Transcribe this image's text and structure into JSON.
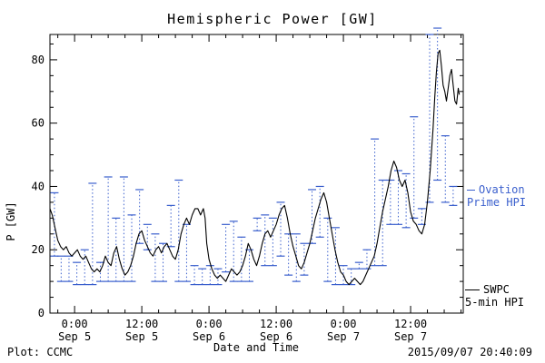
{
  "title": "Hemispheric Power [GW]",
  "footer": {
    "plot_source": "Plot: CCMC",
    "timestamp": "2015/09/07 20:40:09"
  },
  "legend": {
    "ovation_line1": "Ovation",
    "ovation_line2": "Prime HPI",
    "swpc_line1": "SWPC",
    "swpc_line2": "5-min HPI"
  },
  "colors": {
    "swpc": "#000000",
    "ovation": "#3a5fcd",
    "axis": "#000000",
    "background": "#ffffff"
  },
  "chart_data": {
    "type": "line",
    "title": "Hemispheric Power [GW]",
    "xlabel": "Date and Time",
    "ylabel": "P [GW]",
    "x_units": "hours from 2015-09-05 00:00 UT",
    "xlim": [
      -4.4,
      69.4
    ],
    "ylim": [
      0,
      88
    ],
    "yticks": [
      0,
      20,
      40,
      60,
      80
    ],
    "y_minor_step": 5,
    "x_minor_step": 3,
    "xticks": [
      {
        "t": 0,
        "label": [
          "0:00",
          "Sep 5"
        ]
      },
      {
        "t": 12,
        "label": [
          "12:00",
          "Sep 5"
        ]
      },
      {
        "t": 24,
        "label": [
          "0:00",
          "Sep 6"
        ]
      },
      {
        "t": 36,
        "label": [
          "12:00",
          "Sep 6"
        ]
      },
      {
        "t": 48,
        "label": [
          "0:00",
          "Sep 7"
        ]
      },
      {
        "t": 60,
        "label": [
          "12:00",
          "Sep 7"
        ]
      }
    ],
    "series": [
      {
        "name": "SWPC 5-min HPI",
        "type": "line",
        "color": "#000000",
        "points": [
          [
            -4.4,
            33
          ],
          [
            -4,
            31
          ],
          [
            -3.5,
            27
          ],
          [
            -3,
            23
          ],
          [
            -2.5,
            21
          ],
          [
            -2,
            20
          ],
          [
            -1.5,
            21
          ],
          [
            -1,
            19
          ],
          [
            -0.5,
            18
          ],
          [
            0,
            19
          ],
          [
            0.5,
            20
          ],
          [
            1,
            18
          ],
          [
            1.5,
            17
          ],
          [
            2,
            18
          ],
          [
            2.5,
            16
          ],
          [
            3,
            14
          ],
          [
            3.5,
            13
          ],
          [
            4,
            14
          ],
          [
            4.5,
            13
          ],
          [
            5,
            15
          ],
          [
            5.5,
            18
          ],
          [
            6,
            16
          ],
          [
            6.5,
            15
          ],
          [
            7,
            19
          ],
          [
            7.5,
            21
          ],
          [
            8,
            17
          ],
          [
            8.5,
            14
          ],
          [
            9,
            12
          ],
          [
            9.5,
            13
          ],
          [
            10,
            15
          ],
          [
            10.5,
            18
          ],
          [
            11,
            22
          ],
          [
            11.5,
            25
          ],
          [
            12,
            26
          ],
          [
            12.5,
            23
          ],
          [
            13,
            21
          ],
          [
            13.5,
            19
          ],
          [
            14,
            18
          ],
          [
            14.5,
            20
          ],
          [
            15,
            21
          ],
          [
            15.5,
            19
          ],
          [
            16,
            21
          ],
          [
            16.5,
            22
          ],
          [
            17,
            20
          ],
          [
            17.5,
            18
          ],
          [
            18,
            17
          ],
          [
            18.5,
            20
          ],
          [
            19,
            25
          ],
          [
            19.5,
            28
          ],
          [
            20,
            30
          ],
          [
            20.5,
            28
          ],
          [
            21,
            31
          ],
          [
            21.5,
            33
          ],
          [
            22,
            33
          ],
          [
            22.5,
            31
          ],
          [
            23,
            33
          ],
          [
            23.3,
            30
          ],
          [
            23.6,
            22
          ],
          [
            24,
            17
          ],
          [
            24.5,
            14
          ],
          [
            25,
            12
          ],
          [
            25.5,
            11
          ],
          [
            26,
            12
          ],
          [
            26.5,
            11
          ],
          [
            27,
            10
          ],
          [
            27.5,
            12
          ],
          [
            28,
            14
          ],
          [
            28.5,
            13
          ],
          [
            29,
            12
          ],
          [
            29.5,
            13
          ],
          [
            30,
            15
          ],
          [
            30.5,
            18
          ],
          [
            31,
            22
          ],
          [
            31.5,
            20
          ],
          [
            32,
            17
          ],
          [
            32.5,
            15
          ],
          [
            33,
            18
          ],
          [
            33.5,
            22
          ],
          [
            34,
            25
          ],
          [
            34.5,
            26
          ],
          [
            35,
            24
          ],
          [
            35.5,
            26
          ],
          [
            36,
            28
          ],
          [
            36.5,
            31
          ],
          [
            37,
            33
          ],
          [
            37.5,
            34
          ],
          [
            38,
            30
          ],
          [
            38.5,
            25
          ],
          [
            39,
            21
          ],
          [
            39.5,
            18
          ],
          [
            40,
            15
          ],
          [
            40.5,
            14
          ],
          [
            41,
            16
          ],
          [
            41.5,
            19
          ],
          [
            42,
            22
          ],
          [
            42.5,
            26
          ],
          [
            43,
            30
          ],
          [
            43.5,
            33
          ],
          [
            44,
            36
          ],
          [
            44.5,
            38
          ],
          [
            45,
            35
          ],
          [
            45.5,
            30
          ],
          [
            46,
            25
          ],
          [
            46.5,
            20
          ],
          [
            47,
            16
          ],
          [
            47.5,
            13
          ],
          [
            48,
            12
          ],
          [
            48.5,
            10
          ],
          [
            49,
            9
          ],
          [
            49.5,
            10
          ],
          [
            50,
            11
          ],
          [
            50.5,
            10
          ],
          [
            51,
            9
          ],
          [
            51.5,
            10
          ],
          [
            52,
            12
          ],
          [
            52.5,
            14
          ],
          [
            53,
            16
          ],
          [
            53.5,
            18
          ],
          [
            54,
            22
          ],
          [
            54.5,
            27
          ],
          [
            55,
            32
          ],
          [
            55.5,
            36
          ],
          [
            56,
            40
          ],
          [
            56.5,
            45
          ],
          [
            57,
            48
          ],
          [
            57.5,
            46
          ],
          [
            58,
            42
          ],
          [
            58.5,
            40
          ],
          [
            59,
            42
          ],
          [
            59.5,
            38
          ],
          [
            60,
            32
          ],
          [
            60.5,
            29
          ],
          [
            61,
            28
          ],
          [
            61.5,
            26
          ],
          [
            62,
            25
          ],
          [
            62.5,
            28
          ],
          [
            63,
            35
          ],
          [
            63.5,
            45
          ],
          [
            64,
            58
          ],
          [
            64.3,
            68
          ],
          [
            64.6,
            76
          ],
          [
            64.9,
            82
          ],
          [
            65.2,
            83
          ],
          [
            65.5,
            78
          ],
          [
            65.8,
            72
          ],
          [
            66.1,
            70
          ],
          [
            66.4,
            67
          ],
          [
            66.7,
            71
          ],
          [
            67,
            75
          ],
          [
            67.3,
            77
          ],
          [
            67.6,
            72
          ],
          [
            67.9,
            67
          ],
          [
            68.2,
            66
          ],
          [
            68.5,
            71
          ],
          [
            68.7,
            69
          ]
        ]
      },
      {
        "name": "Ovation Prime HPI",
        "type": "range-bars",
        "color": "#3a5fcd",
        "bars": [
          [
            -3.6,
            18,
            38
          ],
          [
            -2.4,
            10,
            18
          ],
          [
            -1.0,
            10,
            18
          ],
          [
            0.4,
            9,
            16
          ],
          [
            1.8,
            9,
            20
          ],
          [
            3.2,
            9,
            41
          ],
          [
            4.6,
            10,
            16
          ],
          [
            6.0,
            10,
            43
          ],
          [
            7.4,
            10,
            30
          ],
          [
            8.8,
            10,
            43
          ],
          [
            10.2,
            10,
            31
          ],
          [
            11.6,
            22,
            39
          ],
          [
            13.0,
            20,
            28
          ],
          [
            14.4,
            10,
            25
          ],
          [
            15.8,
            10,
            22
          ],
          [
            17.2,
            21,
            34
          ],
          [
            18.6,
            10,
            42
          ],
          [
            20.0,
            10,
            28
          ],
          [
            21.4,
            9,
            15
          ],
          [
            22.8,
            9,
            14
          ],
          [
            24.2,
            9,
            15
          ],
          [
            25.6,
            9,
            14
          ],
          [
            27.0,
            13,
            28
          ],
          [
            28.4,
            10,
            29
          ],
          [
            29.8,
            10,
            24
          ],
          [
            31.2,
            10,
            20
          ],
          [
            32.6,
            26,
            30
          ],
          [
            34.0,
            15,
            31
          ],
          [
            35.4,
            15,
            30
          ],
          [
            36.8,
            18,
            35
          ],
          [
            38.2,
            12,
            25
          ],
          [
            39.6,
            10,
            25
          ],
          [
            41.0,
            12,
            22
          ],
          [
            42.4,
            22,
            39
          ],
          [
            43.8,
            24,
            40
          ],
          [
            45.2,
            10,
            30
          ],
          [
            46.6,
            9,
            27
          ],
          [
            48.0,
            9,
            15
          ],
          [
            49.4,
            9,
            14
          ],
          [
            50.8,
            14,
            16
          ],
          [
            52.2,
            14,
            20
          ],
          [
            53.6,
            15,
            55
          ],
          [
            55.0,
            15,
            42
          ],
          [
            56.4,
            28,
            42
          ],
          [
            57.8,
            28,
            45
          ],
          [
            59.2,
            27,
            44
          ],
          [
            60.6,
            30,
            62
          ],
          [
            62.0,
            28,
            33
          ],
          [
            63.4,
            35,
            88
          ],
          [
            64.8,
            42,
            90
          ],
          [
            66.2,
            35,
            56
          ],
          [
            67.6,
            34,
            40
          ]
        ]
      }
    ],
    "legend_entries": [
      "Ovation Prime HPI",
      "SWPC 5-min HPI"
    ],
    "grid": false,
    "legend_position": "right-outside"
  }
}
